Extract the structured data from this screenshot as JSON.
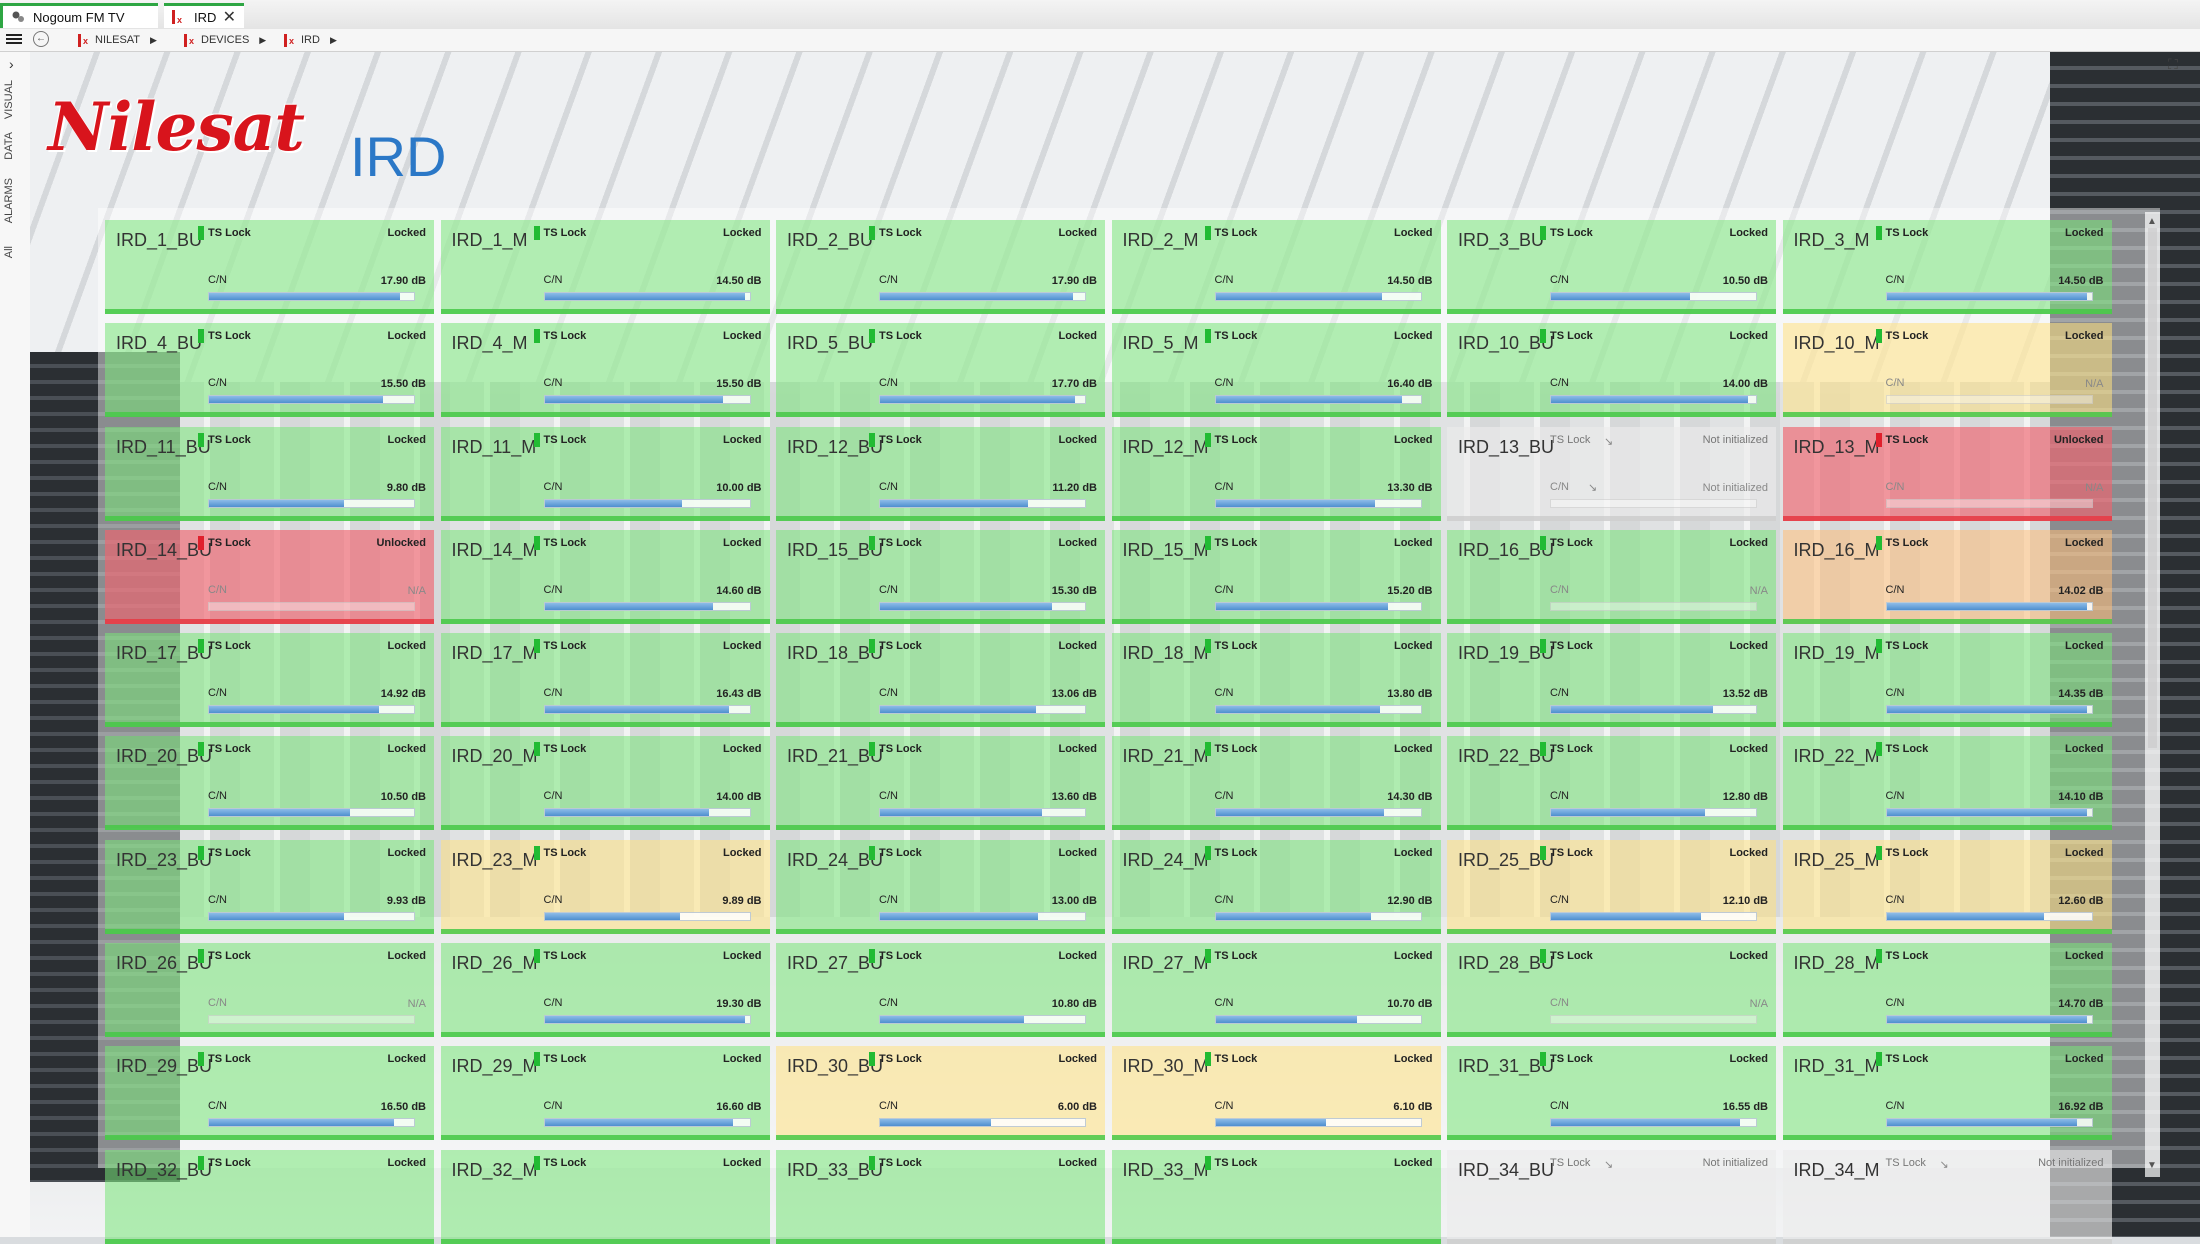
{
  "tabs": [
    {
      "label": "Nogoum FM TV"
    },
    {
      "label": "IRD"
    }
  ],
  "breadcrumb": [
    {
      "label": "NILESAT"
    },
    {
      "label": "DEVICES"
    },
    {
      "label": "IRD"
    }
  ],
  "side_tabs": [
    {
      "label": "VISUAL"
    },
    {
      "label": "DATA"
    },
    {
      "label": "ALARMS"
    },
    {
      "label": "All"
    }
  ],
  "logo_text": "Nilesat",
  "page_title": "IRD",
  "labels": {
    "ts_lock": "TS Lock",
    "cn": "C/N"
  },
  "status_colors": {
    "green": "#7be67b",
    "yellow": "#ffe282",
    "orange": "#ffbe78",
    "red": "#f0646e",
    "grey": "#ebebeb"
  },
  "devices": [
    {
      "name": "IRD_1_BU",
      "lock": "Locked",
      "cn": "17.90 dB",
      "level": 0.93,
      "status": "green"
    },
    {
      "name": "IRD_1_M",
      "lock": "Locked",
      "cn": "14.50 dB",
      "level": 0.98,
      "status": "green"
    },
    {
      "name": "IRD_2_BU",
      "lock": "Locked",
      "cn": "17.90 dB",
      "level": 0.94,
      "status": "green"
    },
    {
      "name": "IRD_2_M",
      "lock": "Locked",
      "cn": "14.50 dB",
      "level": 0.81,
      "status": "green"
    },
    {
      "name": "IRD_3_BU",
      "lock": "Locked",
      "cn": "10.50 dB",
      "level": 0.68,
      "status": "green"
    },
    {
      "name": "IRD_3_M",
      "lock": "Locked",
      "cn": "14.50 dB",
      "level": 0.98,
      "status": "green"
    },
    {
      "name": "IRD_4_BU",
      "lock": "Locked",
      "cn": "15.50 dB",
      "level": 0.85,
      "status": "green"
    },
    {
      "name": "IRD_4_M",
      "lock": "Locked",
      "cn": "15.50 dB",
      "level": 0.87,
      "status": "green"
    },
    {
      "name": "IRD_5_BU",
      "lock": "Locked",
      "cn": "17.70 dB",
      "level": 0.95,
      "status": "green"
    },
    {
      "name": "IRD_5_M",
      "lock": "Locked",
      "cn": "16.40 dB",
      "level": 0.91,
      "status": "green"
    },
    {
      "name": "IRD_10_BU",
      "lock": "Locked",
      "cn": "14.00 dB",
      "level": 0.96,
      "status": "green"
    },
    {
      "name": "IRD_10_M",
      "lock": "Locked",
      "cn": "N/A",
      "level": 0,
      "status": "yellow"
    },
    {
      "name": "IRD_11_BU",
      "lock": "Locked",
      "cn": "9.80 dB",
      "level": 0.66,
      "status": "green"
    },
    {
      "name": "IRD_11_M",
      "lock": "Locked",
      "cn": "10.00 dB",
      "level": 0.67,
      "status": "green"
    },
    {
      "name": "IRD_12_BU",
      "lock": "Locked",
      "cn": "11.20 dB",
      "level": 0.72,
      "status": "green"
    },
    {
      "name": "IRD_12_M",
      "lock": "Locked",
      "cn": "13.30 dB",
      "level": 0.78,
      "status": "green"
    },
    {
      "name": "IRD_13_BU",
      "lock": "Not initialized",
      "cn": "Not initialized",
      "level": 0,
      "status": "grey"
    },
    {
      "name": "IRD_13_M",
      "lock": "Unlocked",
      "cn": "N/A",
      "level": 0,
      "status": "red"
    },
    {
      "name": "IRD_14_BU",
      "lock": "Unlocked",
      "cn": "N/A",
      "level": 0,
      "status": "red"
    },
    {
      "name": "IRD_14_M",
      "lock": "Locked",
      "cn": "14.60 dB",
      "level": 0.82,
      "status": "green"
    },
    {
      "name": "IRD_15_BU",
      "lock": "Locked",
      "cn": "15.30 dB",
      "level": 0.84,
      "status": "green"
    },
    {
      "name": "IRD_15_M",
      "lock": "Locked",
      "cn": "15.20 dB",
      "level": 0.84,
      "status": "green"
    },
    {
      "name": "IRD_16_BU",
      "lock": "Locked",
      "cn": "N/A",
      "level": 0,
      "status": "green"
    },
    {
      "name": "IRD_16_M",
      "lock": "Locked",
      "cn": "14.02 dB",
      "level": 0.98,
      "status": "orange"
    },
    {
      "name": "IRD_17_BU",
      "lock": "Locked",
      "cn": "14.92 dB",
      "level": 0.83,
      "status": "green"
    },
    {
      "name": "IRD_17_M",
      "lock": "Locked",
      "cn": "16.43 dB",
      "level": 0.9,
      "status": "green"
    },
    {
      "name": "IRD_18_BU",
      "lock": "Locked",
      "cn": "13.06 dB",
      "level": 0.76,
      "status": "green"
    },
    {
      "name": "IRD_18_M",
      "lock": "Locked",
      "cn": "13.80 dB",
      "level": 0.8,
      "status": "green"
    },
    {
      "name": "IRD_19_BU",
      "lock": "Locked",
      "cn": "13.52 dB",
      "level": 0.79,
      "status": "green"
    },
    {
      "name": "IRD_19_M",
      "lock": "Locked",
      "cn": "14.35 dB",
      "level": 0.98,
      "status": "green"
    },
    {
      "name": "IRD_20_BU",
      "lock": "Locked",
      "cn": "10.50 dB",
      "level": 0.69,
      "status": "green"
    },
    {
      "name": "IRD_20_M",
      "lock": "Locked",
      "cn": "14.00 dB",
      "level": 0.8,
      "status": "green"
    },
    {
      "name": "IRD_21_BU",
      "lock": "Locked",
      "cn": "13.60 dB",
      "level": 0.79,
      "status": "green"
    },
    {
      "name": "IRD_21_M",
      "lock": "Locked",
      "cn": "14.30 dB",
      "level": 0.82,
      "status": "green"
    },
    {
      "name": "IRD_22_BU",
      "lock": "Locked",
      "cn": "12.80 dB",
      "level": 0.75,
      "status": "green"
    },
    {
      "name": "IRD_22_M",
      "lock": "Locked",
      "cn": "14.10 dB",
      "level": 0.98,
      "status": "green"
    },
    {
      "name": "IRD_23_BU",
      "lock": "Locked",
      "cn": "9.93 dB",
      "level": 0.66,
      "status": "green"
    },
    {
      "name": "IRD_23_M",
      "lock": "Locked",
      "cn": "9.89 dB",
      "level": 0.66,
      "status": "yellow"
    },
    {
      "name": "IRD_24_BU",
      "lock": "Locked",
      "cn": "13.00 dB",
      "level": 0.77,
      "status": "green"
    },
    {
      "name": "IRD_24_M",
      "lock": "Locked",
      "cn": "12.90 dB",
      "level": 0.76,
      "status": "green"
    },
    {
      "name": "IRD_25_BU",
      "lock": "Locked",
      "cn": "12.10 dB",
      "level": 0.73,
      "status": "yellow"
    },
    {
      "name": "IRD_25_M",
      "lock": "Locked",
      "cn": "12.60 dB",
      "level": 0.77,
      "status": "yellow"
    },
    {
      "name": "IRD_26_BU",
      "lock": "Locked",
      "cn": "N/A",
      "level": 0,
      "status": "green"
    },
    {
      "name": "IRD_26_M",
      "lock": "Locked",
      "cn": "19.30 dB",
      "level": 0.98,
      "status": "green"
    },
    {
      "name": "IRD_27_BU",
      "lock": "Locked",
      "cn": "10.80 dB",
      "level": 0.7,
      "status": "green"
    },
    {
      "name": "IRD_27_M",
      "lock": "Locked",
      "cn": "10.70 dB",
      "level": 0.69,
      "status": "green"
    },
    {
      "name": "IRD_28_BU",
      "lock": "Locked",
      "cn": "N/A",
      "level": 0,
      "status": "green"
    },
    {
      "name": "IRD_28_M",
      "lock": "Locked",
      "cn": "14.70 dB",
      "level": 0.98,
      "status": "green"
    },
    {
      "name": "IRD_29_BU",
      "lock": "Locked",
      "cn": "16.50 dB",
      "level": 0.9,
      "status": "green"
    },
    {
      "name": "IRD_29_M",
      "lock": "Locked",
      "cn": "16.60 dB",
      "level": 0.92,
      "status": "green"
    },
    {
      "name": "IRD_30_BU",
      "lock": "Locked",
      "cn": "6.00 dB",
      "level": 0.54,
      "status": "yellow"
    },
    {
      "name": "IRD_30_M",
      "lock": "Locked",
      "cn": "6.10 dB",
      "level": 0.54,
      "status": "yellow"
    },
    {
      "name": "IRD_31_BU",
      "lock": "Locked",
      "cn": "16.55 dB",
      "level": 0.92,
      "status": "green"
    },
    {
      "name": "IRD_31_M",
      "lock": "Locked",
      "cn": "16.92 dB",
      "level": 0.93,
      "status": "green"
    },
    {
      "name": "IRD_32_BU",
      "lock": "Locked",
      "cn": "",
      "level": 0,
      "status": "green"
    },
    {
      "name": "IRD_32_M",
      "lock": "Locked",
      "cn": "",
      "level": 0,
      "status": "green"
    },
    {
      "name": "IRD_33_BU",
      "lock": "Locked",
      "cn": "",
      "level": 0,
      "status": "green"
    },
    {
      "name": "IRD_33_M",
      "lock": "Locked",
      "cn": "",
      "level": 0,
      "status": "green"
    },
    {
      "name": "IRD_34_BU",
      "lock": "Not initialized",
      "cn": "",
      "level": 0,
      "status": "grey"
    },
    {
      "name": "IRD_34_M",
      "lock": "Not initialized",
      "cn": "",
      "level": 0,
      "status": "grey"
    }
  ]
}
